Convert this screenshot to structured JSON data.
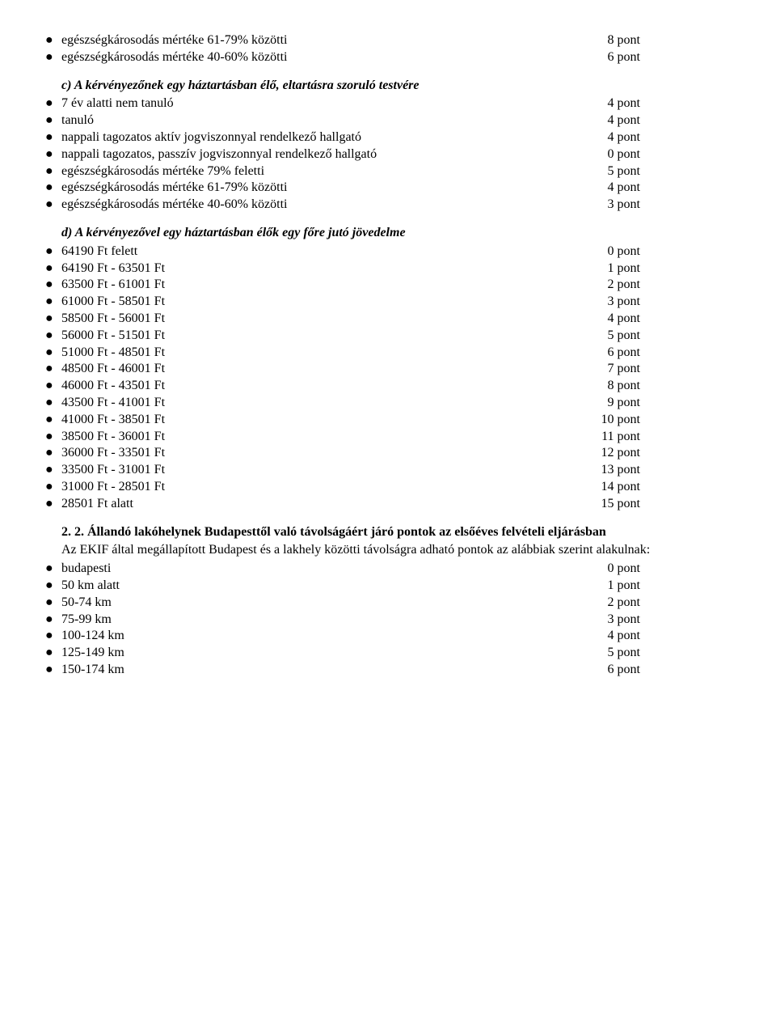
{
  "bullet_glyph": "●",
  "sec_a_items": [
    {
      "label": "egészségkárosodás mértéke 61-79% közötti",
      "points": "8 pont"
    },
    {
      "label": "egészségkárosodás mértéke 40-60% közötti",
      "points": "6 pont"
    }
  ],
  "sec_c_heading": "c) A kérvényezőnek egy háztartásban élő, eltartásra szoruló testvére",
  "sec_c_items": [
    {
      "label": "7 év alatti nem tanuló",
      "points": "4 pont"
    },
    {
      "label": "tanuló",
      "points": "4 pont"
    },
    {
      "label": "nappali tagozatos aktív jogviszonnyal rendelkező hallgató",
      "points": "4 pont"
    },
    {
      "label": "nappali tagozatos, passzív jogviszonnyal rendelkező hallgató",
      "points": "0 pont"
    },
    {
      "label": "egészségkárosodás mértéke 79% feletti",
      "points": "5 pont"
    },
    {
      "label": "egészségkárosodás mértéke 61-79% közötti",
      "points": "4 pont"
    },
    {
      "label": "egészségkárosodás mértéke 40-60% közötti",
      "points": "3 pont"
    }
  ],
  "sec_d_heading": "d) A kérvényezővel egy háztartásban élők egy főre jutó jövedelme",
  "sec_d_items": [
    {
      "label": "64190 Ft felett",
      "points": "0 pont"
    },
    {
      "label": "64190 Ft - 63501 Ft",
      "points": "1 pont"
    },
    {
      "label": "63500 Ft - 61001 Ft",
      "points": "2 pont"
    },
    {
      "label": "61000 Ft - 58501 Ft",
      "points": "3 pont"
    },
    {
      "label": "58500 Ft - 56001 Ft",
      "points": "4 pont"
    },
    {
      "label": "56000 Ft - 51501 Ft",
      "points": "5 pont"
    },
    {
      "label": "51000 Ft - 48501 Ft",
      "points": "6 pont"
    },
    {
      "label": "48500 Ft - 46001 Ft",
      "points": "7 pont"
    },
    {
      "label": "46000 Ft - 43501 Ft",
      "points": "8 pont"
    },
    {
      "label": "43500 Ft - 41001 Ft",
      "points": "9 pont"
    },
    {
      "label": "41000 Ft - 38501 Ft",
      "points": "10 pont"
    },
    {
      "label": "38500 Ft - 36001 Ft",
      "points": "11 pont"
    },
    {
      "label": "36000 Ft - 33501 Ft",
      "points": "12 pont"
    },
    {
      "label": "33500 Ft - 31001 Ft",
      "points": "13 pont"
    },
    {
      "label": "31000 Ft - 28501 Ft",
      "points": "14 pont"
    },
    {
      "label": "28501 Ft alatt",
      "points": "15 pont"
    }
  ],
  "sec22_title": "2. 2. Állandó lakóhelynek Budapesttől való távolságáért járó pontok az elsőéves felvételi eljárásban",
  "sec22_body": "Az EKIF által megállapított Budapest és a lakhely közötti távolságra adható pontok az alábbiak szerint alakulnak:",
  "sec22_items": [
    {
      "label": "budapesti",
      "points": "0 pont"
    },
    {
      "label": "50 km alatt",
      "points": "1 pont"
    },
    {
      "label": "50-74 km",
      "points": "2 pont"
    },
    {
      "label": "75-99 km",
      "points": "3 pont"
    },
    {
      "label": "100-124 km",
      "points": "4 pont"
    },
    {
      "label": "125-149 km",
      "points": "5 pont"
    },
    {
      "label": "150-174 km",
      "points": "6 pont"
    }
  ]
}
